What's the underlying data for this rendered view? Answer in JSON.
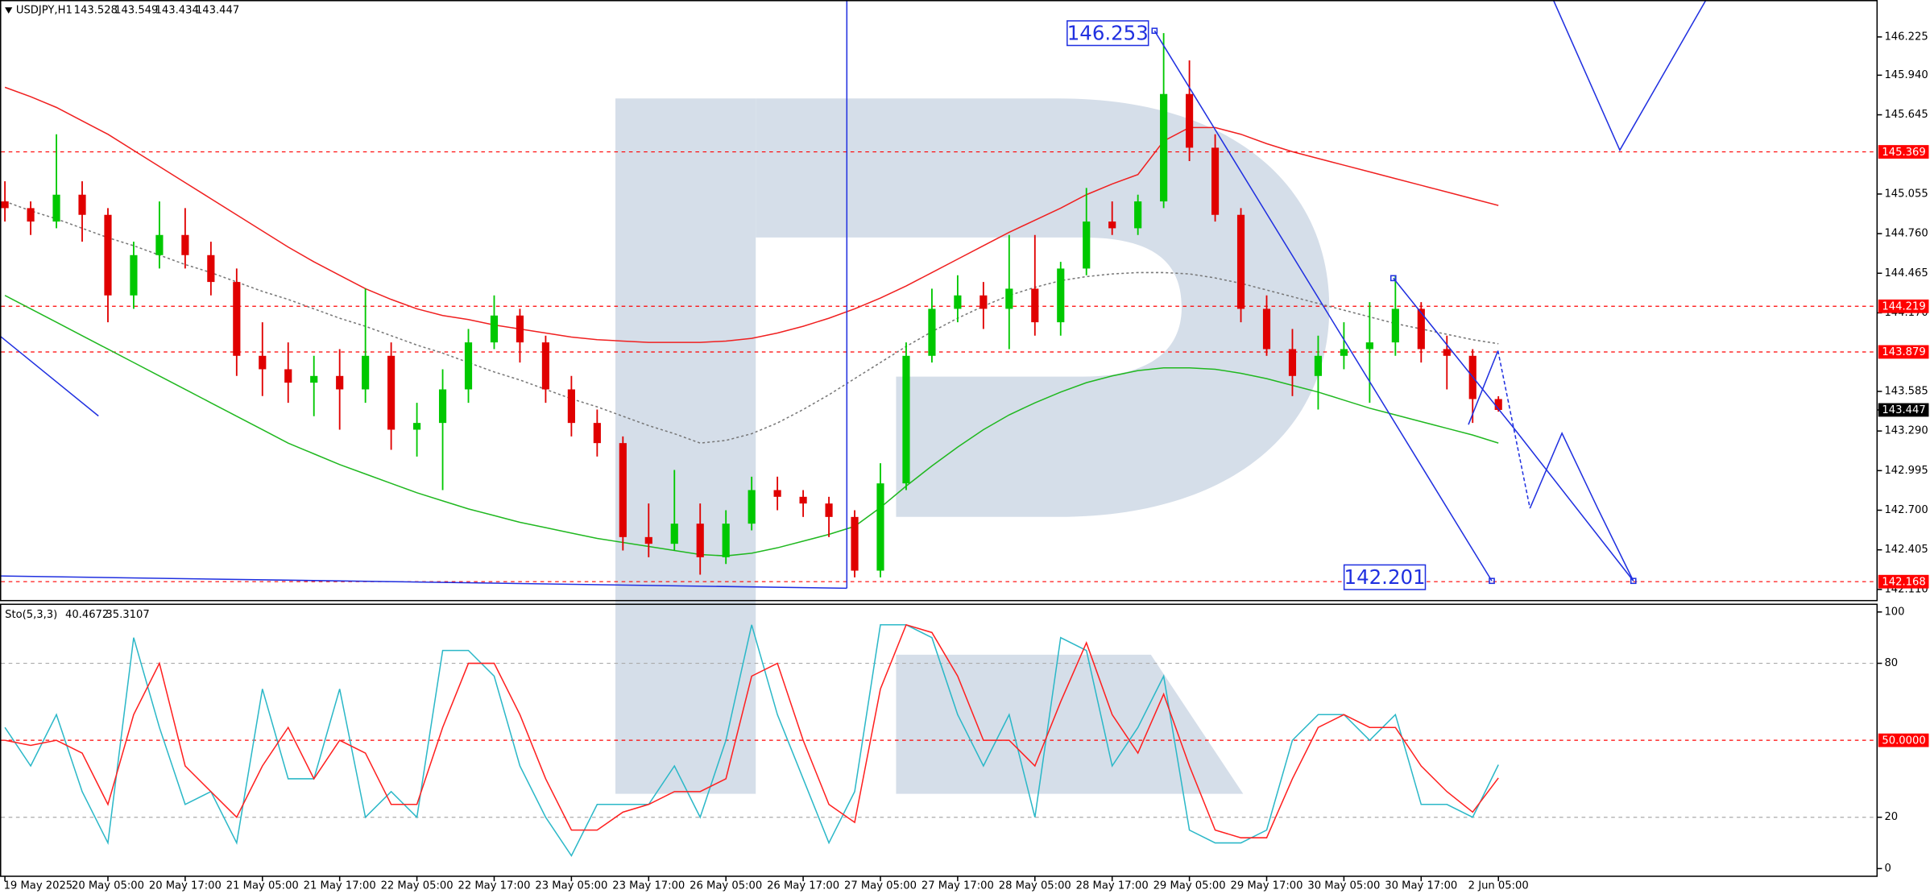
{
  "chart_data": [
    {
      "type": "candlestick",
      "title": "USDJPY,H1",
      "categories": [
        "19 May 2025",
        null,
        null,
        null,
        "20 May 05:00",
        null,
        null,
        "20 May 17:00",
        null,
        null,
        "21 May 05:00",
        null,
        null,
        "21 May 17:00",
        null,
        null,
        "22 May 05:00",
        null,
        null,
        "22 May 17:00",
        null,
        null,
        "23 May 05:00",
        null,
        null,
        "23 May 17:00",
        null,
        null,
        "26 May 05:00",
        null,
        null,
        "26 May 17:00",
        null,
        null,
        "27 May 05:00",
        null,
        null,
        "27 May 17:00",
        null,
        null,
        "28 May 05:00",
        null,
        null,
        "28 May 17:00",
        null,
        null,
        "29 May 05:00",
        null,
        null,
        "29 May 17:00",
        null,
        null,
        "30 May 05:00",
        null,
        null,
        "30 May 17:00",
        null,
        null,
        "2 Jun 05:00"
      ],
      "open": [
        145.0,
        144.95,
        144.85,
        145.05,
        144.9,
        144.3,
        144.6,
        144.75,
        144.6,
        144.4,
        143.85,
        143.75,
        143.65,
        143.7,
        143.6,
        143.85,
        143.3,
        143.35,
        143.6,
        143.95,
        144.15,
        143.95,
        143.6,
        143.35,
        143.2,
        142.5,
        142.45,
        142.6,
        142.35,
        142.6,
        142.85,
        142.8,
        142.75,
        142.65,
        142.25,
        142.9,
        143.85,
        144.2,
        144.3,
        144.2,
        144.35,
        144.1,
        144.5,
        144.85,
        144.8,
        145.0,
        145.8,
        145.4,
        144.9,
        144.2,
        143.9,
        143.7,
        143.85,
        143.9,
        143.95,
        144.2,
        143.9,
        143.85,
        143.528
      ],
      "high": [
        145.15,
        145.0,
        145.5,
        145.15,
        144.95,
        144.7,
        145.0,
        144.95,
        144.7,
        144.5,
        144.1,
        143.95,
        143.85,
        143.9,
        144.35,
        143.95,
        143.5,
        143.75,
        144.05,
        144.3,
        144.2,
        144.0,
        143.7,
        143.45,
        143.25,
        142.75,
        143.0,
        142.75,
        142.7,
        142.95,
        142.95,
        142.85,
        142.8,
        142.7,
        143.05,
        143.95,
        144.35,
        144.45,
        144.4,
        144.75,
        144.75,
        144.55,
        145.1,
        145.0,
        145.05,
        146.253,
        146.05,
        145.5,
        144.95,
        144.3,
        144.05,
        144.0,
        144.1,
        144.25,
        144.45,
        144.25,
        144.0,
        143.9,
        143.549
      ],
      "low": [
        144.85,
        144.75,
        144.8,
        144.7,
        144.1,
        144.2,
        144.5,
        144.5,
        144.3,
        143.7,
        143.55,
        143.5,
        143.4,
        143.3,
        143.5,
        143.15,
        143.1,
        142.85,
        143.5,
        143.9,
        143.8,
        143.5,
        143.25,
        143.1,
        142.4,
        142.35,
        142.4,
        142.22,
        142.3,
        142.55,
        142.7,
        142.65,
        142.5,
        142.2,
        142.2,
        142.85,
        143.8,
        144.1,
        144.05,
        143.9,
        144.0,
        144.0,
        144.45,
        144.75,
        144.75,
        144.95,
        145.3,
        144.85,
        144.1,
        143.85,
        143.55,
        143.45,
        143.75,
        143.5,
        143.85,
        143.8,
        143.6,
        143.35,
        143.434
      ],
      "close": [
        144.95,
        144.85,
        145.05,
        144.9,
        144.3,
        144.6,
        144.75,
        144.6,
        144.4,
        143.85,
        143.75,
        143.65,
        143.7,
        143.6,
        143.85,
        143.3,
        143.35,
        143.6,
        143.95,
        144.15,
        143.95,
        143.6,
        143.35,
        143.2,
        142.5,
        142.45,
        142.6,
        142.35,
        142.6,
        142.85,
        142.8,
        142.75,
        142.65,
        142.25,
        142.9,
        143.85,
        144.2,
        144.3,
        144.2,
        144.35,
        144.1,
        144.5,
        144.85,
        144.8,
        145.0,
        145.8,
        145.4,
        144.9,
        144.2,
        143.9,
        143.7,
        143.85,
        143.9,
        143.95,
        144.2,
        143.9,
        143.85,
        143.528,
        143.447
      ],
      "up_color": "#00c800",
      "down_color": "#e00000",
      "lines": [
        {
          "color": "#f02020",
          "dash": false,
          "values": [
            145.85,
            145.78,
            145.7,
            145.6,
            145.5,
            145.38,
            145.26,
            145.14,
            145.02,
            144.9,
            144.78,
            144.66,
            144.55,
            144.45,
            144.35,
            144.27,
            144.2,
            144.15,
            144.12,
            144.08,
            144.05,
            144.02,
            143.99,
            143.97,
            143.96,
            143.95,
            143.95,
            143.95,
            143.96,
            143.98,
            144.02,
            144.07,
            144.13,
            144.2,
            144.28,
            144.37,
            144.47,
            144.57,
            144.67,
            144.77,
            144.86,
            144.95,
            145.05,
            145.13,
            145.2,
            145.45,
            145.55,
            145.55,
            145.5,
            145.43,
            145.37,
            145.32,
            145.27,
            145.22,
            145.17,
            145.12,
            145.07,
            145.02,
            144.97
          ]
        },
        {
          "color": "#20b820",
          "dash": false,
          "values": [
            144.3,
            144.2,
            144.1,
            144.0,
            143.9,
            143.8,
            143.7,
            143.6,
            143.5,
            143.4,
            143.3,
            143.2,
            143.12,
            143.04,
            142.97,
            142.9,
            142.83,
            142.77,
            142.71,
            142.66,
            142.61,
            142.57,
            142.53,
            142.49,
            142.46,
            142.43,
            142.4,
            142.37,
            142.36,
            142.38,
            142.42,
            142.47,
            142.52,
            142.58,
            142.72,
            142.88,
            143.03,
            143.17,
            143.3,
            143.41,
            143.5,
            143.58,
            143.65,
            143.7,
            143.74,
            143.76,
            143.76,
            143.75,
            143.72,
            143.68,
            143.63,
            143.58,
            143.52,
            143.46,
            143.41,
            143.36,
            143.31,
            143.26,
            143.2
          ]
        },
        {
          "color": "#777777",
          "dash": true,
          "values": [
            145.0,
            144.93,
            144.87,
            144.8,
            144.73,
            144.67,
            144.6,
            144.53,
            144.47,
            144.4,
            144.33,
            144.27,
            144.2,
            144.13,
            144.07,
            144.0,
            143.93,
            143.87,
            143.8,
            143.73,
            143.67,
            143.6,
            143.53,
            143.47,
            143.4,
            143.33,
            143.27,
            143.2,
            143.22,
            143.27,
            143.35,
            143.45,
            143.56,
            143.68,
            143.8,
            143.92,
            144.03,
            144.13,
            144.22,
            144.3,
            144.36,
            144.41,
            144.44,
            144.46,
            144.47,
            144.47,
            144.46,
            144.43,
            144.39,
            144.34,
            144.29,
            144.24,
            144.19,
            144.14,
            144.09,
            144.05,
            144.01,
            143.97,
            143.94
          ]
        }
      ],
      "levels": [
        145.369,
        144.219,
        143.879,
        142.168
      ],
      "level_colors": [
        "#ff0000",
        "#ff0000",
        "#ff0000",
        "#ff0000"
      ],
      "level_tags": true,
      "annotations": [
        146.253,
        142.201
      ],
      "ylim": [
        142.027,
        146.5
      ],
      "yticks": [
        146.225,
        {
          "value": 145.94,
          "label": "145.940"
        },
        145.645,
        145.055,
        {
          "value": 144.76,
          "label": "144.760"
        },
        144.465,
        {
          "value": 144.17,
          "label": "144.170"
        },
        143.585,
        {
          "value": 143.29,
          "label": "143.290"
        },
        142.995,
        {
          "value": 142.7,
          "label": "142.700"
        },
        142.405,
        {
          "value": 142.11,
          "label": "142.110"
        }
      ]
    },
    {
      "type": "line",
      "title": "Sto(5,3,3)",
      "series": [
        {
          "color": "#2cb8c8",
          "values": [
            55,
            40,
            60,
            30,
            10,
            90,
            55,
            25,
            30,
            10,
            70,
            35,
            35,
            70,
            20,
            30,
            20,
            85,
            85,
            75,
            40,
            20,
            5,
            25,
            25,
            25,
            40,
            20,
            50,
            95,
            60,
            35,
            10,
            30,
            95,
            95,
            90,
            60,
            40,
            60,
            20,
            90,
            85,
            40,
            55,
            75,
            15,
            10,
            10,
            15,
            50,
            60,
            60,
            50,
            60,
            25,
            25,
            20,
            40.4672
          ]
        },
        {
          "color": "#ff2020",
          "values": [
            50,
            48,
            50,
            45,
            25,
            60,
            80,
            40,
            30,
            20,
            40,
            55,
            35,
            50,
            45,
            25,
            25,
            55,
            80,
            80,
            60,
            35,
            15,
            15,
            22,
            25,
            30,
            30,
            35,
            75,
            80,
            50,
            25,
            18,
            70,
            95,
            92,
            75,
            50,
            50,
            40,
            65,
            88,
            60,
            45,
            68,
            40,
            15,
            12,
            12,
            35,
            55,
            60,
            55,
            55,
            40,
            30,
            22,
            35.3107
          ]
        }
      ],
      "levels": [
        80,
        {
          "value": 50,
          "label": "50.0000"
        },
        20
      ],
      "level_colors": [
        "#aaaaaa",
        "#ff0000",
        "#aaaaaa"
      ],
      "ylim": [
        -3,
        103
      ],
      "yticks": [
        100,
        80,
        20,
        0
      ]
    }
  ]
}
